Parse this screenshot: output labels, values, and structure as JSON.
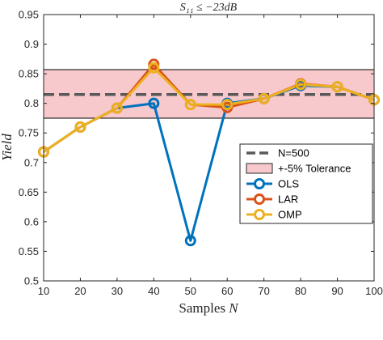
{
  "chart_data": {
    "type": "line",
    "title": "S₁₁ ≤ −23dB",
    "xlabel_main": "Samples ",
    "xlabel_var": "N",
    "ylabel": "Yield",
    "xlim": [
      10,
      100
    ],
    "ylim": [
      0.5,
      0.95
    ],
    "xticks": [
      10,
      20,
      30,
      40,
      50,
      60,
      70,
      80,
      90,
      100
    ],
    "yticks": [
      0.5,
      0.55,
      0.6,
      0.65,
      0.7,
      0.75,
      0.8,
      0.85,
      0.9,
      0.95
    ],
    "ytick_labels": [
      "0.5",
      "0.55",
      "0.6",
      "0.65",
      "0.7",
      "0.75",
      "0.8",
      "0.85",
      "0.9",
      "0.95"
    ],
    "x": [
      10,
      20,
      30,
      40,
      50,
      60,
      70,
      80,
      90,
      100
    ],
    "reference_line": {
      "name": "N=500",
      "value": 0.815,
      "color": "#595959"
    },
    "tolerance_band": {
      "name": "+-5% Tolerance",
      "low": 0.775,
      "high": 0.857,
      "color": "#f8c9cc"
    },
    "series": [
      {
        "name": "OLS",
        "color": "#0072bd",
        "values": [
          0.718,
          0.76,
          0.792,
          0.8,
          0.568,
          0.8,
          0.808,
          0.83,
          0.828,
          0.806
        ]
      },
      {
        "name": "LAR",
        "color": "#d95319",
        "values": [
          0.718,
          0.76,
          0.792,
          0.866,
          0.798,
          0.793,
          0.808,
          0.833,
          0.828,
          0.806
        ]
      },
      {
        "name": "OMP",
        "color": "#edb120",
        "values": [
          0.718,
          0.76,
          0.792,
          0.86,
          0.798,
          0.798,
          0.808,
          0.832,
          0.828,
          0.806
        ]
      }
    ],
    "legend_position": "right",
    "grid": false
  }
}
